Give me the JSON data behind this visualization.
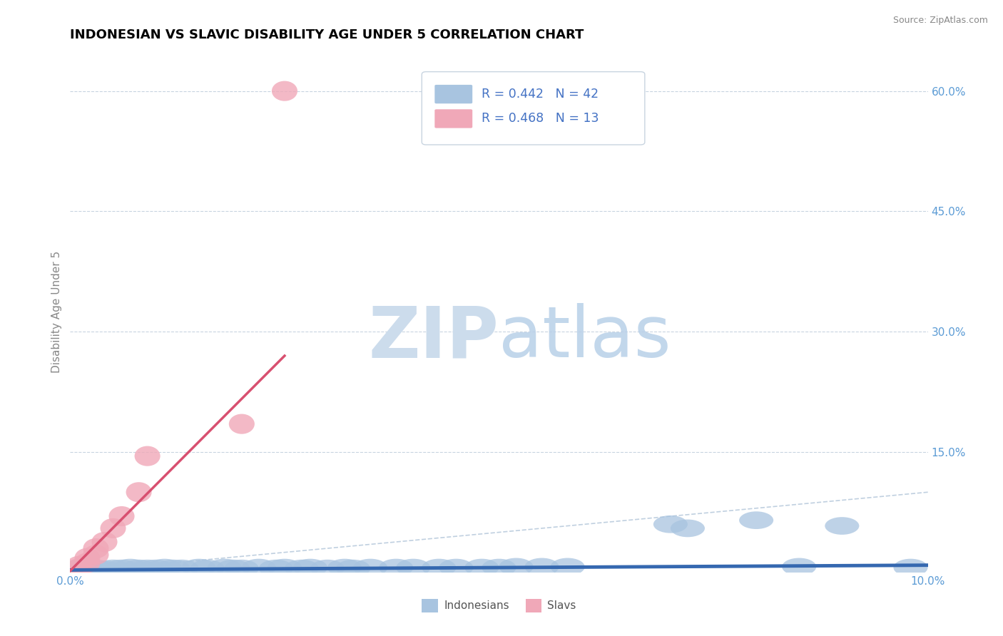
{
  "title": "INDONESIAN VS SLAVIC DISABILITY AGE UNDER 5 CORRELATION CHART",
  "source_text": "Source: ZipAtlas.com",
  "ylabel": "Disability Age Under 5",
  "xlim": [
    0.0,
    0.1
  ],
  "ylim": [
    0.0,
    0.65
  ],
  "ytick_vals_right": [
    0.15,
    0.3,
    0.45,
    0.6
  ],
  "legend_label_blue": "Indonesians",
  "legend_label_pink": "Slavs",
  "color_blue": "#a8c4e0",
  "color_blue_line": "#3568b0",
  "color_pink": "#f0a8b8",
  "color_pink_line": "#d85070",
  "color_diag_line": "#c0d0e0",
  "color_legend_text": "#4472c4",
  "color_right_ticks": "#5b9bd5",
  "indonesian_x": [
    0.001,
    0.002,
    0.003,
    0.004,
    0.005,
    0.006,
    0.007,
    0.008,
    0.009,
    0.01,
    0.011,
    0.012,
    0.013,
    0.015,
    0.016,
    0.018,
    0.019,
    0.02,
    0.022,
    0.024,
    0.025,
    0.027,
    0.028,
    0.03,
    0.032,
    0.033,
    0.035,
    0.038,
    0.04,
    0.043,
    0.045,
    0.048,
    0.05,
    0.052,
    0.055,
    0.058,
    0.07,
    0.072,
    0.08,
    0.085,
    0.09,
    0.098
  ],
  "indonesian_y": [
    0.005,
    0.004,
    0.005,
    0.004,
    0.005,
    0.005,
    0.006,
    0.005,
    0.005,
    0.005,
    0.006,
    0.005,
    0.005,
    0.006,
    0.005,
    0.006,
    0.005,
    0.005,
    0.006,
    0.005,
    0.006,
    0.005,
    0.006,
    0.005,
    0.006,
    0.005,
    0.006,
    0.006,
    0.006,
    0.006,
    0.006,
    0.006,
    0.006,
    0.007,
    0.007,
    0.007,
    0.06,
    0.055,
    0.065,
    0.007,
    0.058,
    0.006
  ],
  "slav_x": [
    0.001,
    0.001,
    0.002,
    0.002,
    0.003,
    0.003,
    0.004,
    0.005,
    0.006,
    0.008,
    0.009,
    0.02,
    0.025
  ],
  "slav_y": [
    0.005,
    0.008,
    0.012,
    0.018,
    0.022,
    0.03,
    0.038,
    0.055,
    0.07,
    0.1,
    0.145,
    0.185,
    0.6
  ],
  "blue_line_x": [
    0.0,
    0.1
  ],
  "blue_line_y": [
    0.003,
    0.009
  ],
  "pink_line_x": [
    0.0,
    0.025
  ],
  "pink_line_y": [
    0.002,
    0.27
  ]
}
